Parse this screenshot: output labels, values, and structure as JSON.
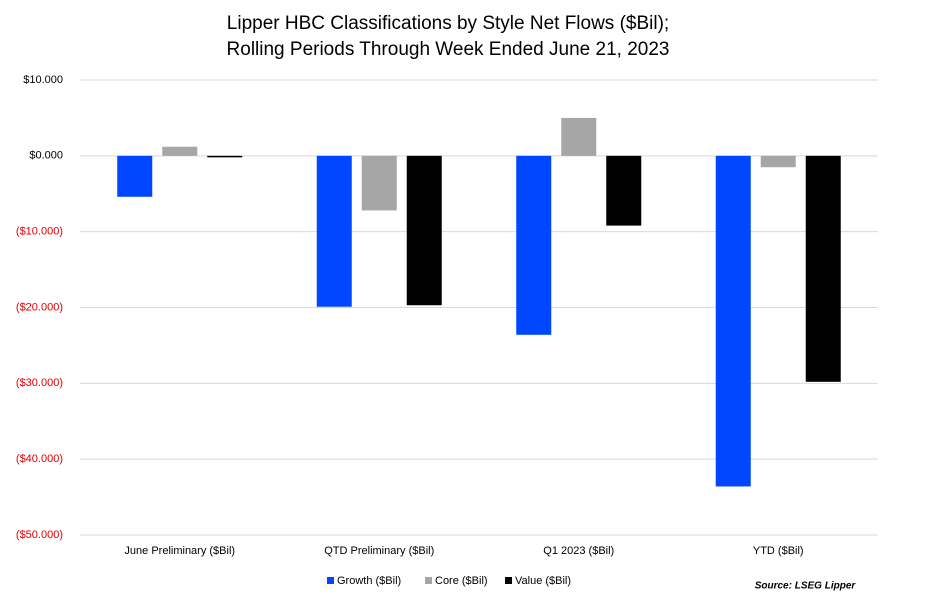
{
  "chart_data": {
    "type": "bar",
    "title": [
      "Lipper HBC Classifications by Style Net Flows ($Bil);",
      "Rolling Periods Through Week Ended June 21, 2023"
    ],
    "categories": [
      "June Preliminary ($Bil)",
      "QTD Preliminary ($Bil)",
      "Q1 2023 ($Bil)",
      "YTD ($Bil)"
    ],
    "series": [
      {
        "name": "Growth ($Bil)",
        "color": "#0047ff",
        "values": [
          -5.4,
          -19.9,
          -23.6,
          -43.6
        ]
      },
      {
        "name": "Core ($Bil)",
        "color": "#a6a6a6",
        "values": [
          1.2,
          -7.2,
          5.0,
          -1.5
        ]
      },
      {
        "name": "Value ($Bil)",
        "color": "#000000",
        "values": [
          -0.2,
          -19.7,
          -9.2,
          -29.8
        ]
      }
    ],
    "ylim": [
      -50,
      10
    ],
    "yticks": [
      {
        "value": 10,
        "label": "$10.000"
      },
      {
        "value": 0,
        "label": "$0.000"
      },
      {
        "value": -10,
        "label": "($10.000)"
      },
      {
        "value": -20,
        "label": "($20.000)"
      },
      {
        "value": -30,
        "label": "($30.000)"
      },
      {
        "value": -40,
        "label": "($40.000)"
      },
      {
        "value": -50,
        "label": "($50.000)"
      }
    ],
    "negative_tick_color": "#e00000",
    "grid": true,
    "legend": "bottom",
    "source": "Source: LSEG Lipper"
  }
}
